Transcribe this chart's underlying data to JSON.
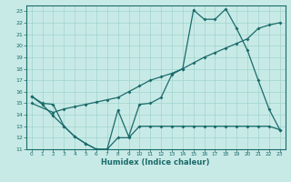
{
  "title": "",
  "xlabel": "Humidex (Indice chaleur)",
  "bg_color": "#c8eae6",
  "grid_color": "#a0d4ce",
  "line_color": "#1a6b6b",
  "xlim": [
    -0.5,
    23.5
  ],
  "ylim": [
    11,
    23.5
  ],
  "yticks": [
    11,
    12,
    13,
    14,
    15,
    16,
    17,
    18,
    19,
    20,
    21,
    22,
    23
  ],
  "xticks": [
    0,
    1,
    2,
    3,
    4,
    5,
    6,
    7,
    8,
    9,
    10,
    11,
    12,
    13,
    14,
    15,
    16,
    17,
    18,
    19,
    20,
    21,
    22,
    23
  ],
  "line1_x": [
    0,
    1,
    2,
    3,
    4,
    5,
    6,
    7,
    8,
    9,
    10,
    11,
    12,
    13,
    14,
    15,
    16,
    17,
    18,
    19,
    20,
    21,
    22,
    23
  ],
  "line1_y": [
    15.6,
    14.9,
    13.9,
    13.0,
    12.1,
    11.5,
    11.0,
    11.0,
    14.4,
    12.1,
    14.9,
    15.0,
    15.5,
    17.5,
    18.0,
    23.1,
    22.3,
    22.3,
    23.2,
    21.5,
    19.6,
    17.0,
    14.5,
    12.7
  ],
  "line2_x": [
    0,
    2,
    3,
    4,
    5,
    6,
    7,
    8,
    9,
    10,
    11,
    12,
    13,
    14,
    15,
    16,
    17,
    18,
    19,
    20,
    21,
    22,
    23
  ],
  "line2_y": [
    15.0,
    14.2,
    14.5,
    14.7,
    14.9,
    15.1,
    15.3,
    15.5,
    16.0,
    16.5,
    17.0,
    17.3,
    17.6,
    18.0,
    18.5,
    19.0,
    19.4,
    19.8,
    20.2,
    20.6,
    21.5,
    21.8,
    22.0
  ],
  "line3_x": [
    0,
    1,
    2,
    3,
    4,
    5,
    6,
    7,
    8,
    9,
    10,
    11,
    12,
    13,
    14,
    15,
    16,
    17,
    18,
    19,
    20,
    21,
    22,
    23
  ],
  "line3_y": [
    15.6,
    15.0,
    14.9,
    13.0,
    12.1,
    11.5,
    11.0,
    11.0,
    12.0,
    12.0,
    13.0,
    13.0,
    13.0,
    13.0,
    13.0,
    13.0,
    13.0,
    13.0,
    13.0,
    13.0,
    13.0,
    13.0,
    13.0,
    12.7
  ]
}
